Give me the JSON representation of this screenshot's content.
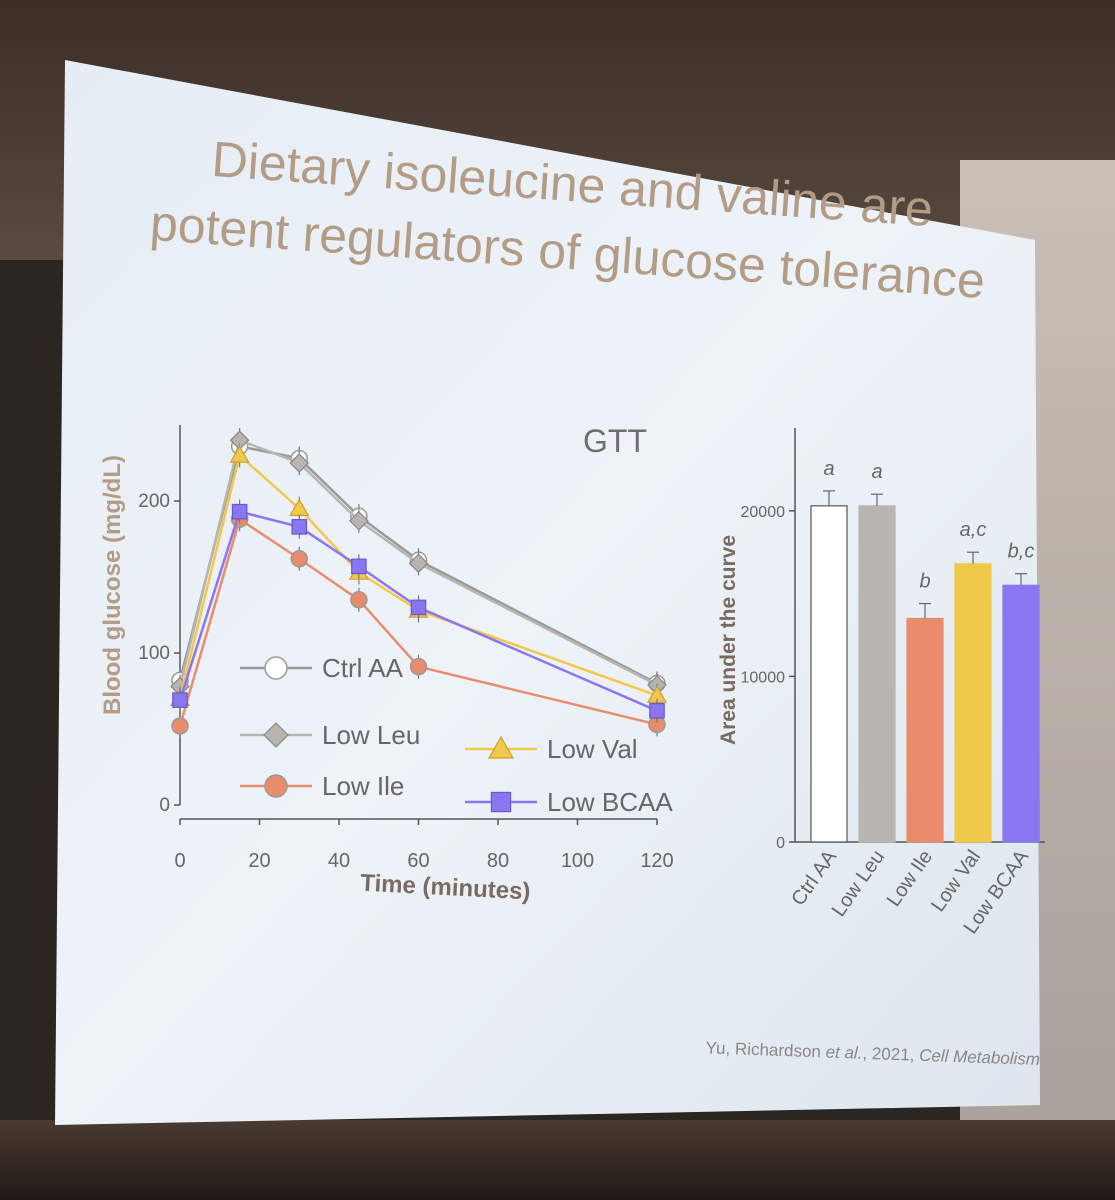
{
  "slide": {
    "title": "Dietary isoleucine and valine are\npotent regulators of glucose tolerance",
    "citation_authors": "Yu, Richardson ",
    "citation_etal": "et al.",
    "citation_year": ", 2021, ",
    "citation_journal": "Cell Metabolism"
  },
  "colors": {
    "ctrl_aa": "#ffffff",
    "low_leu": "#b8b4b0",
    "low_ile": "#e88c6c",
    "low_val": "#f0c84a",
    "low_bcaa": "#8a76f0",
    "axis_label": "#b39c86",
    "tick": "#666666"
  },
  "chart_data": [
    {
      "type": "line",
      "title": "GTT",
      "xlabel": "Time (minutes)",
      "ylabel": "Blood glucose (mg/dL)",
      "xlim": [
        0,
        120
      ],
      "ylim": [
        0,
        250
      ],
      "xticks": [
        "0",
        "20",
        "40",
        "60",
        "80",
        "100",
        "120"
      ],
      "yticks": [
        "0",
        "100",
        "200"
      ],
      "x": [
        0,
        15,
        30,
        45,
        60,
        120
      ],
      "series": [
        {
          "name": "Ctrl AA",
          "values": [
            82,
            236,
            228,
            190,
            161,
            80
          ],
          "color": "#ffffff",
          "marker": "circle"
        },
        {
          "name": "Low Leu",
          "values": [
            78,
            240,
            225,
            187,
            159,
            79
          ],
          "color": "#b8b4b0",
          "marker": "diamond"
        },
        {
          "name": "Low Ile",
          "values": [
            52,
            188,
            162,
            135,
            91,
            53
          ],
          "color": "#e88c6c",
          "marker": "circle"
        },
        {
          "name": "Low Val",
          "values": [
            70,
            230,
            195,
            153,
            128,
            72
          ],
          "color": "#f0c84a",
          "marker": "triangle"
        },
        {
          "name": "Low BCAA",
          "values": [
            69,
            193,
            183,
            157,
            130,
            62
          ],
          "color": "#8a76f0",
          "marker": "square"
        }
      ],
      "legend_position": "bottom-left"
    },
    {
      "type": "bar",
      "ylabel": "Area under the curve",
      "ylim": [
        0,
        25000
      ],
      "yticks": [
        "0",
        "10000",
        "20000"
      ],
      "categories": [
        "Ctrl AA",
        "Low Leu",
        "Low Ile",
        "Low Val",
        "Low BCAA"
      ],
      "values": [
        20300,
        20300,
        13500,
        16800,
        15500
      ],
      "errors": [
        900,
        700,
        900,
        700,
        700
      ],
      "significance": [
        "a",
        "a",
        "b",
        "a,c",
        "b,c"
      ],
      "colors": [
        "#ffffff",
        "#b8b4b0",
        "#e88c6c",
        "#f0c84a",
        "#8a76f0"
      ]
    }
  ]
}
